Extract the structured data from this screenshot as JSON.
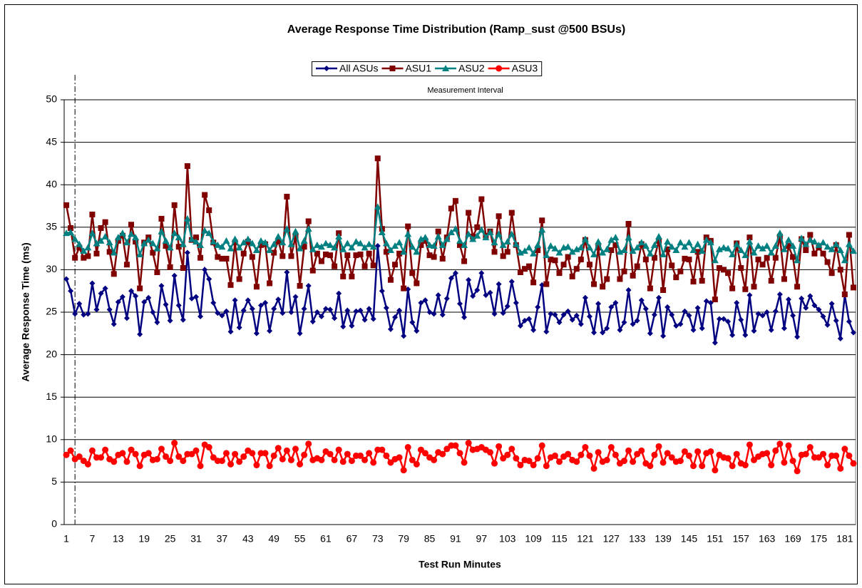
{
  "chart_data": {
    "type": "line",
    "title": "Average Response Time Distribution (Ramp_sust @500 BSUs)",
    "x_label": "Test Run Minutes",
    "y_label": "Average Response Time (ms)",
    "annotation": "Measurement Interval",
    "measurement_start": 3,
    "ylim": [
      0,
      50
    ],
    "yticks": [
      0,
      5,
      10,
      15,
      20,
      25,
      30,
      35,
      40,
      45,
      50
    ],
    "grid": true,
    "legend": "top",
    "categories": [
      "1",
      null,
      null,
      null,
      null,
      null,
      "7",
      null,
      null,
      null,
      null,
      null,
      "13",
      null,
      null,
      null,
      null,
      null,
      "19",
      null,
      null,
      null,
      null,
      null,
      "25",
      null,
      null,
      null,
      null,
      null,
      "31",
      null,
      null,
      null,
      null,
      null,
      "37",
      null,
      null,
      null,
      null,
      null,
      "43",
      null,
      null,
      null,
      null,
      null,
      "49",
      null,
      null,
      null,
      null,
      null,
      "55",
      null,
      null,
      null,
      null,
      null,
      "61",
      null,
      null,
      null,
      null,
      null,
      "67",
      null,
      null,
      null,
      null,
      null,
      "73",
      null,
      null,
      null,
      null,
      null,
      "79",
      null,
      null,
      null,
      null,
      null,
      "85",
      null,
      null,
      null,
      null,
      null,
      "91",
      null,
      null,
      null,
      null,
      null,
      "97",
      null,
      null,
      null,
      null,
      null,
      "103",
      null,
      null,
      null,
      null,
      null,
      "109",
      null,
      null,
      null,
      null,
      null,
      "115",
      null,
      null,
      null,
      null,
      null,
      "121",
      null,
      null,
      null,
      null,
      null,
      "127",
      null,
      null,
      null,
      null,
      null,
      "133",
      null,
      null,
      null,
      null,
      null,
      "139",
      null,
      null,
      null,
      null,
      null,
      "145",
      null,
      null,
      null,
      null,
      null,
      "151",
      null,
      null,
      null,
      null,
      null,
      "157",
      null,
      null,
      null,
      null,
      null,
      "163",
      null,
      null,
      null,
      null,
      null,
      "169",
      null,
      null,
      null,
      null,
      null,
      "175",
      null,
      null,
      null,
      null,
      null,
      "181",
      null,
      null
    ],
    "series": [
      {
        "name": "All ASUs",
        "color": "#000080",
        "marker": "diamond",
        "values": [
          28.9,
          27.5,
          24.8,
          26.0,
          24.7,
          24.8,
          28.4,
          25.3,
          27.2,
          27.8,
          25.3,
          23.6,
          26.2,
          26.8,
          24.3,
          27.5,
          26.9,
          22.4,
          26.2,
          26.7,
          25.0,
          23.8,
          28.1,
          25.9,
          24.0,
          29.3,
          25.8,
          24.1,
          32.0,
          26.6,
          26.8,
          24.5,
          30.0,
          28.9,
          26.1,
          24.9,
          24.6,
          25.1,
          22.7,
          26.4,
          23.2,
          25.2,
          26.4,
          25.4,
          22.5,
          25.8,
          26.1,
          22.8,
          25.4,
          26.5,
          24.9,
          29.7,
          25.0,
          26.8,
          22.5,
          25.4,
          28.1,
          23.9,
          25.0,
          24.5,
          25.4,
          25.3,
          24.3,
          27.2,
          23.3,
          25.2,
          23.4,
          25.1,
          25.2,
          24.1,
          25.4,
          24.2,
          32.8,
          27.5,
          25.5,
          23.0,
          24.4,
          25.2,
          22.2,
          27.7,
          23.8,
          22.8,
          26.1,
          26.4,
          25.0,
          24.8,
          27.0,
          24.7,
          26.6,
          29.0,
          29.6,
          26.0,
          24.4,
          28.8,
          26.9,
          27.6,
          29.6,
          27.0,
          27.3,
          24.8,
          28.3,
          24.9,
          25.7,
          28.6,
          26.1,
          23.4,
          24.0,
          24.2,
          22.9,
          25.6,
          28.2,
          22.7,
          24.8,
          24.7,
          23.8,
          24.7,
          25.1,
          24.1,
          24.6,
          23.6,
          26.7,
          24.5,
          22.6,
          26.0,
          22.6,
          23.1,
          25.6,
          26.1,
          22.9,
          23.8,
          27.6,
          23.6,
          24.0,
          26.4,
          25.4,
          22.5,
          24.7,
          26.7,
          22.2,
          25.6,
          24.7,
          23.4,
          23.6,
          25.1,
          24.6,
          22.9,
          25.5,
          23.1,
          26.3,
          26.1,
          21.4,
          24.2,
          24.2,
          23.9,
          22.3,
          26.1,
          24.1,
          22.3,
          27.0,
          22.8,
          24.8,
          24.6,
          25.0,
          22.9,
          25.1,
          27.1,
          23.1,
          26.5,
          24.6,
          22.1,
          26.6,
          25.5,
          26.9,
          25.8,
          25.3,
          24.5,
          23.5,
          26.0,
          24.0,
          21.9,
          27.0,
          23.9,
          22.6
        ]
      },
      {
        "name": "ASU1",
        "color": "#800000",
        "marker": "square",
        "values": [
          37.6,
          34.9,
          31.4,
          32.6,
          31.4,
          31.6,
          36.5,
          31.9,
          34.9,
          35.6,
          32.1,
          29.5,
          33.4,
          34.0,
          30.6,
          35.3,
          33.3,
          27.8,
          33.2,
          33.8,
          32.0,
          29.7,
          36.0,
          32.8,
          30.3,
          37.6,
          32.7,
          30.2,
          42.2,
          33.5,
          33.8,
          31.4,
          38.8,
          37.0,
          33.2,
          31.5,
          31.3,
          31.3,
          28.2,
          33.2,
          28.9,
          31.9,
          33.3,
          31.5,
          28.0,
          32.9,
          33.0,
          28.4,
          32.0,
          33.4,
          31.6,
          38.6,
          31.6,
          33.9,
          28.1,
          32.7,
          35.7,
          29.9,
          31.9,
          31.0,
          31.8,
          31.7,
          30.4,
          34.3,
          29.2,
          31.7,
          29.2,
          31.7,
          31.8,
          30.4,
          31.9,
          30.5,
          43.1,
          34.8,
          32.1,
          28.8,
          30.6,
          31.9,
          27.8,
          35.1,
          29.6,
          28.4,
          32.9,
          33.4,
          31.7,
          31.5,
          34.5,
          31.3,
          33.8,
          37.2,
          38.1,
          32.9,
          31.0,
          36.7,
          33.9,
          35.0,
          38.3,
          34.0,
          34.5,
          32.1,
          36.3,
          31.6,
          32.1,
          36.7,
          32.9,
          29.7,
          30.1,
          30.4,
          28.5,
          32.3,
          35.8,
          28.3,
          31.2,
          31.1,
          29.6,
          30.6,
          31.5,
          29.2,
          30.1,
          31.2,
          33.5,
          30.6,
          28.3,
          32.6,
          28.0,
          28.9,
          32.3,
          32.9,
          28.9,
          29.8,
          35.4,
          29.3,
          30.4,
          33.0,
          31.2,
          27.8,
          31.4,
          33.4,
          27.6,
          32.4,
          30.5,
          29.1,
          29.8,
          31.3,
          31.2,
          28.6,
          32.1,
          28.7,
          33.8,
          33.4,
          26.5,
          30.2,
          30.0,
          29.6,
          27.8,
          33.1,
          30.2,
          27.7,
          33.8,
          28.0,
          31.2,
          30.6,
          31.4,
          28.7,
          31.4,
          33.9,
          28.9,
          32.8,
          31.5,
          28.0,
          33.6,
          32.3,
          34.1,
          31.9,
          32.6,
          31.9,
          30.9,
          29.6,
          32.9,
          30.0,
          27.1,
          34.1,
          27.9
        ]
      },
      {
        "name": "ASU2",
        "color": "#008080",
        "marker": "triangle",
        "values": [
          34.3,
          34.4,
          33.6,
          33.0,
          32.2,
          32.6,
          34.3,
          33.1,
          33.4,
          33.9,
          33.2,
          32.0,
          33.8,
          34.3,
          33.2,
          34.2,
          33.8,
          31.8,
          33.1,
          33.5,
          33.1,
          32.5,
          34.5,
          33.4,
          32.6,
          34.3,
          33.8,
          33.0,
          36.0,
          33.6,
          33.3,
          32.9,
          34.6,
          34.3,
          33.3,
          32.9,
          32.7,
          33.4,
          32.5,
          33.6,
          32.6,
          33.2,
          33.6,
          33.1,
          32.3,
          33.4,
          33.2,
          32.3,
          33.0,
          33.9,
          33.2,
          34.8,
          33.0,
          34.5,
          32.5,
          33.4,
          34.8,
          32.4,
          32.9,
          32.7,
          33.1,
          32.9,
          32.6,
          33.9,
          32.4,
          33.1,
          32.6,
          33.3,
          33.1,
          32.6,
          33.0,
          32.7,
          37.4,
          34.4,
          33.1,
          32.3,
          32.8,
          33.2,
          32.1,
          34.2,
          32.7,
          32.1,
          33.6,
          33.8,
          32.9,
          32.8,
          33.9,
          32.9,
          33.6,
          34.4,
          34.8,
          33.4,
          32.9,
          34.2,
          33.6,
          34.0,
          34.7,
          33.8,
          34.4,
          33.2,
          34.2,
          32.9,
          33.3,
          34.2,
          33.0,
          32.0,
          32.2,
          32.6,
          31.9,
          32.9,
          34.7,
          31.7,
          32.8,
          32.5,
          32.0,
          32.6,
          32.7,
          32.1,
          32.4,
          32.6,
          33.6,
          32.6,
          31.8,
          33.3,
          32.0,
          32.4,
          33.5,
          33.8,
          32.1,
          32.3,
          33.8,
          32.2,
          32.6,
          33.2,
          32.8,
          31.9,
          32.9,
          33.9,
          31.8,
          33.3,
          32.7,
          32.3,
          33.2,
          32.7,
          33.2,
          32.3,
          33.0,
          32.2,
          33.5,
          33.2,
          31.1,
          32.4,
          32.6,
          32.5,
          31.8,
          33.0,
          32.3,
          31.7,
          33.3,
          32.0,
          32.8,
          32.5,
          32.8,
          32.0,
          32.8,
          34.3,
          32.4,
          33.5,
          32.8,
          31.1,
          33.7,
          33.0,
          33.5,
          33.3,
          32.9,
          33.2,
          32.7,
          32.4,
          33.0,
          32.3,
          31.1,
          33.0,
          32.2
        ]
      },
      {
        "name": "ASU3",
        "color": "#ff0000",
        "marker": "circle",
        "values": [
          8.2,
          8.7,
          7.7,
          8.0,
          7.5,
          7.1,
          8.7,
          7.9,
          7.9,
          8.8,
          7.7,
          7.4,
          8.2,
          8.4,
          7.4,
          8.8,
          8.3,
          6.9,
          8.2,
          8.4,
          7.6,
          7.7,
          8.9,
          8.0,
          7.5,
          9.6,
          8.0,
          7.5,
          8.3,
          8.3,
          8.7,
          6.9,
          9.4,
          9.1,
          7.9,
          7.5,
          7.5,
          8.4,
          7.1,
          8.3,
          7.4,
          8.0,
          8.7,
          8.4,
          7.0,
          8.4,
          8.4,
          6.9,
          8.1,
          9.0,
          7.7,
          8.7,
          7.6,
          8.9,
          7.1,
          8.2,
          9.5,
          7.6,
          7.8,
          7.6,
          8.6,
          8.3,
          7.6,
          8.8,
          7.4,
          8.3,
          7.5,
          8.1,
          8.1,
          7.6,
          8.4,
          7.3,
          8.8,
          8.8,
          8.1,
          7.3,
          7.7,
          7.9,
          6.4,
          9.1,
          7.6,
          7.1,
          8.8,
          8.4,
          7.9,
          7.6,
          8.5,
          8.3,
          8.9,
          9.3,
          9.3,
          8.4,
          7.3,
          9.6,
          8.8,
          8.9,
          9.1,
          8.8,
          8.5,
          7.2,
          9.2,
          7.8,
          8.2,
          8.9,
          7.8,
          7.0,
          7.6,
          7.5,
          7.0,
          7.8,
          9.3,
          6.9,
          7.9,
          8.1,
          7.4,
          8.0,
          8.3,
          7.6,
          7.4,
          8.2,
          9.1,
          8.1,
          6.6,
          8.5,
          7.4,
          7.6,
          9.1,
          8.2,
          7.2,
          7.5,
          8.7,
          7.4,
          8.3,
          8.7,
          7.2,
          6.9,
          8.2,
          9.2,
          7.3,
          8.4,
          7.9,
          7.4,
          7.5,
          8.6,
          8.1,
          6.9,
          8.6,
          6.9,
          8.4,
          8.6,
          6.4,
          8.2,
          7.9,
          7.8,
          6.9,
          8.3,
          7.2,
          7.0,
          9.4,
          7.6,
          8.0,
          8.3,
          8.4,
          7.0,
          8.7,
          9.5,
          7.3,
          9.3,
          7.5,
          6.3,
          8.2,
          8.3,
          9.1,
          7.9,
          7.9,
          8.3,
          7.0,
          8.1,
          8.1,
          6.6,
          8.9,
          8.1,
          7.2
        ]
      }
    ]
  }
}
